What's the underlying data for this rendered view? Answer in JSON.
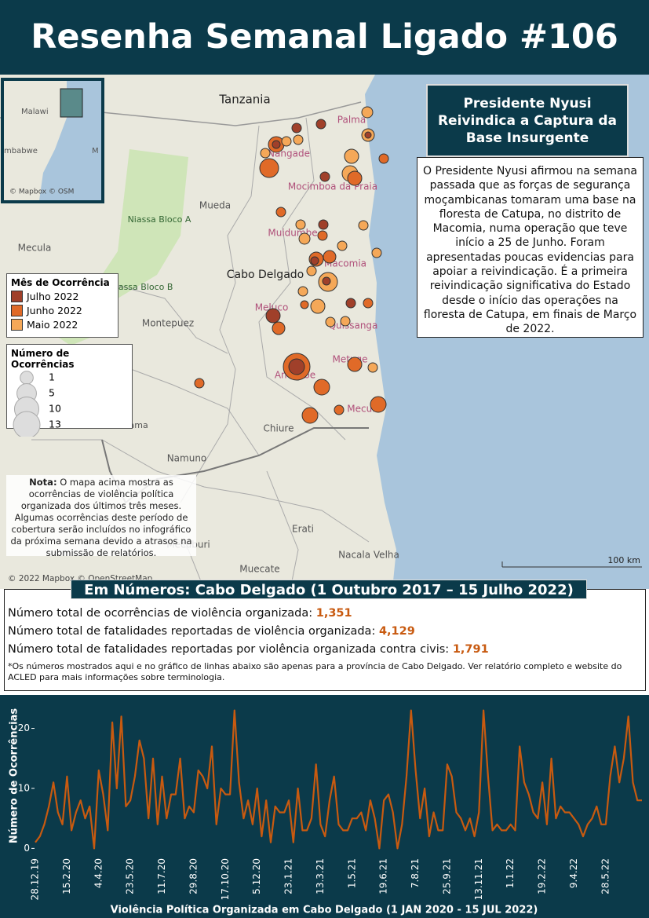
{
  "header": {
    "title": "Resenha Semanal Ligado #106"
  },
  "map": {
    "labels": [
      "Tanzania",
      "Palma",
      "Nangade",
      "Mocimboa da Praia",
      "Mueda",
      "Niassa Bloco A",
      "Muidumbe",
      "Macomia",
      "Mecula",
      "Cabo Delgado",
      "Niassa Bloco B",
      "Meluco",
      "Quissanga",
      "Montepuez",
      "Metuge",
      "Ancuabe",
      "Mecufi",
      "Chiure",
      "Namuno",
      "Balama",
      "Erati",
      "Mecuburi",
      "Muecate",
      "Nacala Velha"
    ],
    "inset_labels": [
      "Malawi",
      "mbabwe",
      "M"
    ],
    "inset_attribution": "© Mapbox © OSM",
    "attribution": "© 2022 Mapbox © OpenStreetMap",
    "scale": "100 km",
    "legend_color": {
      "title": "Mês de Ocorrência",
      "items": [
        {
          "label": "Julho 2022",
          "color": "#a0402a"
        },
        {
          "label": "Junho 2022",
          "color": "#e06a28"
        },
        {
          "label": "Maio 2022",
          "color": "#f5a858"
        }
      ]
    },
    "legend_size": {
      "title": "Número de Ocorrências",
      "items": [
        1,
        5,
        10,
        13
      ]
    },
    "note": {
      "label": "Nota:",
      "text": "O mapa acima mostra as ocorrências de violência política organizada dos últimos três meses. Algumas ocorrências deste período de cobertura serão incluídos no infográfico da próxima semana devido a atrasos na submissão de relatórios."
    }
  },
  "textbox": {
    "title": "Presidente Nyusi Reivindica a Captura da Base Insurgente",
    "body": "O Presidente Nyusi afirmou na semana passada que as forças de segurança moçambicanas tomaram uma base na floresta de Catupa, no distrito de Macomia, numa operação que teve início a 25 de Junho. Foram apresentadas poucas evidencias para apoiar a reivindicação. É a primeira reivindicação significativa do Estado desde o início das operações na floresta de Catupa, em finais de Março de 2022."
  },
  "numbers": {
    "title": "Em Números: Cabo Delgado (1 Outubro 2017 – 15 Julho 2022)",
    "rows": [
      {
        "label": "Número total de ocorrências de violência organizada:",
        "value": "1,351"
      },
      {
        "label": "Número total de fatalidades reportadas de violência organizada:",
        "value": "4,129"
      },
      {
        "label": "Número total de fatalidades reportadas por violência organizada contra civis:",
        "value": "1,791"
      }
    ],
    "footnote": "*Os números mostrados aqui e no gráfico de linhas abaixo são apenas para a província de Cabo Delgado. Ver relatório completo e website do ACLED para mais informações sobre terminologia."
  },
  "chart_data": {
    "type": "line",
    "x_label": "Violência Política Organizada em Cabo Delgado (1 JAN 2020 - 15 JUL 2022)",
    "y_label": "Número de Ocorrências",
    "color": "#c85a10",
    "ylim": [
      -1,
      24
    ],
    "yticks": [
      0,
      10,
      20
    ],
    "categories": [
      "28.12.19",
      null,
      null,
      null,
      null,
      null,
      null,
      "15.2.20",
      null,
      null,
      null,
      null,
      null,
      null,
      "4.4.20",
      null,
      null,
      null,
      null,
      null,
      null,
      "23.5.20",
      null,
      null,
      null,
      null,
      null,
      null,
      "11.7.20",
      null,
      null,
      null,
      null,
      null,
      null,
      "29.8.20",
      null,
      null,
      null,
      null,
      null,
      null,
      "17.10.20",
      null,
      null,
      null,
      null,
      null,
      null,
      "5.12.20",
      null,
      null,
      null,
      null,
      null,
      null,
      "23.1.21",
      null,
      null,
      null,
      null,
      null,
      null,
      "13.3.21",
      null,
      null,
      null,
      null,
      null,
      null,
      "1.5.21",
      null,
      null,
      null,
      null,
      null,
      null,
      "19.6.21",
      null,
      null,
      null,
      null,
      null,
      null,
      "7.8.21",
      null,
      null,
      null,
      null,
      null,
      null,
      "25.9.21",
      null,
      null,
      null,
      null,
      null,
      null,
      "13.11.21",
      null,
      null,
      null,
      null,
      null,
      null,
      "1.1.22",
      null,
      null,
      null,
      null,
      null,
      null,
      "19.2.22",
      null,
      null,
      null,
      null,
      null,
      null,
      "9.4.22",
      null,
      null,
      null,
      null,
      null,
      null,
      "28.5.22",
      null,
      null,
      null,
      null,
      null,
      null,
      null,
      null
    ],
    "values": [
      1,
      2,
      4,
      7,
      11,
      6,
      4,
      12,
      3,
      6,
      8,
      5,
      7,
      0,
      13,
      9,
      3,
      21,
      10,
      22,
      7,
      8,
      12,
      18,
      15,
      5,
      15,
      4,
      12,
      5,
      9,
      9,
      15,
      5,
      7,
      6,
      13,
      12,
      10,
      17,
      4,
      10,
      9,
      9,
      23,
      11,
      5,
      8,
      4,
      10,
      2,
      8,
      1,
      7,
      6,
      6,
      8,
      1,
      10,
      3,
      3,
      5,
      14,
      4,
      2,
      8,
      12,
      4,
      3,
      3,
      5,
      5,
      6,
      3,
      8,
      5,
      0,
      8,
      9,
      6,
      0,
      4,
      12,
      23,
      13,
      5,
      10,
      2,
      6,
      3,
      3,
      14,
      12,
      6,
      5,
      3,
      5,
      2,
      6,
      23,
      12,
      3,
      4,
      3,
      3,
      4,
      3,
      17,
      11,
      9,
      6,
      5,
      11,
      4,
      15,
      5,
      7,
      6,
      6,
      5,
      4,
      2,
      4,
      5,
      7,
      4,
      4,
      12,
      17,
      11,
      15,
      22,
      11,
      8,
      8
    ]
  }
}
